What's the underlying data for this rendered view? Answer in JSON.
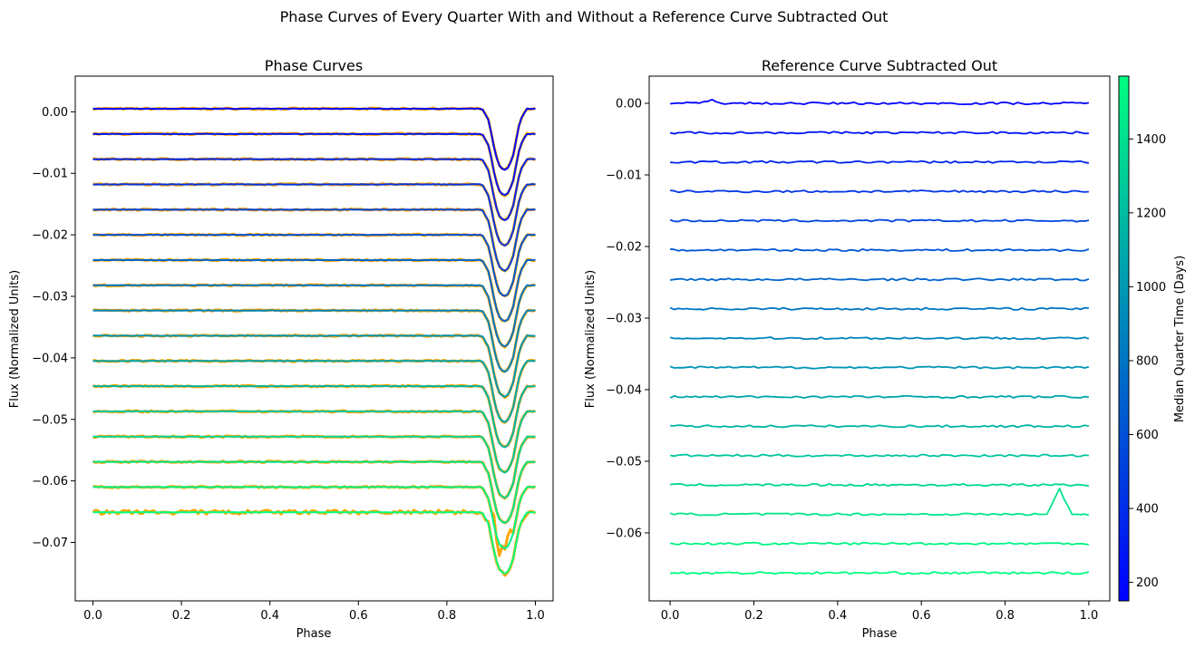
{
  "suptitle": "Phase Curves of Every Quarter With and Without a Reference Curve Subtracted Out",
  "colors": {
    "raw": "#ffa500",
    "cmap_low": "#0000ff",
    "cmap_high": "#00ff80",
    "axes_edge": "#000000"
  },
  "chart_data": [
    {
      "type": "line",
      "title": "Phase Curves",
      "xlabel": "Phase",
      "ylabel": "Flux (Normalized Units)",
      "xlim": [
        -0.04,
        1.04
      ],
      "ylim": [
        -0.0795,
        0.0058
      ],
      "xticks": [
        0.0,
        0.2,
        0.4,
        0.6,
        0.8,
        1.0
      ],
      "xtick_labels": [
        "0.0",
        "0.2",
        "0.4",
        "0.6",
        "0.8",
        "1.0"
      ],
      "yticks": [
        0.0,
        -0.01,
        -0.02,
        -0.03,
        -0.04,
        -0.05,
        -0.06,
        -0.07
      ],
      "ytick_labels": [
        "0.00",
        "−0.01",
        "−0.02",
        "−0.03",
        "−0.04",
        "−0.05",
        "−0.06",
        "−0.07"
      ],
      "raw_color": "orange",
      "offsets": [
        0.0005,
        -0.0036,
        -0.0077,
        -0.0118,
        -0.0159,
        -0.02,
        -0.0241,
        -0.0282,
        -0.0323,
        -0.0364,
        -0.0405,
        -0.0446,
        -0.0487,
        -0.0528,
        -0.0569,
        -0.061,
        -0.0651
      ],
      "median_times_days": [
        170,
        260,
        350,
        440,
        530,
        620,
        710,
        800,
        890,
        980,
        1070,
        1160,
        1250,
        1340,
        1430,
        1510,
        1570
      ],
      "transit_profile": {
        "phase": [
          0.0,
          0.88,
          0.895,
          0.91,
          0.92,
          0.93,
          0.94,
          0.95,
          0.965,
          0.98,
          1.0
        ],
        "delta_flux": [
          0.0,
          0.0,
          -0.002,
          -0.0075,
          -0.0095,
          -0.01,
          -0.0095,
          -0.0075,
          -0.002,
          0.0,
          0.0
        ]
      }
    },
    {
      "type": "line",
      "title": "Reference Curve Subtracted Out",
      "xlabel": "Phase",
      "ylabel": "Flux (Normalized Units)",
      "xlim": [
        -0.05,
        1.05
      ],
      "ylim": [
        -0.0695,
        0.0038
      ],
      "xticks": [
        0.0,
        0.2,
        0.4,
        0.6,
        0.8,
        1.0
      ],
      "xtick_labels": [
        "0.0",
        "0.2",
        "0.4",
        "0.6",
        "0.8",
        "1.0"
      ],
      "yticks": [
        0.0,
        -0.01,
        -0.02,
        -0.03,
        -0.04,
        -0.05,
        -0.06
      ],
      "ytick_labels": [
        "0.00",
        "−0.01",
        "−0.02",
        "−0.03",
        "−0.04",
        "−0.05",
        "−0.06"
      ],
      "offsets": [
        0.0,
        -0.0041,
        -0.0082,
        -0.0123,
        -0.0164,
        -0.0205,
        -0.0246,
        -0.0287,
        -0.0328,
        -0.0369,
        -0.041,
        -0.0451,
        -0.0492,
        -0.0533,
        -0.0574,
        -0.0615,
        -0.0656
      ],
      "median_times_days": [
        170,
        260,
        350,
        440,
        530,
        620,
        710,
        800,
        890,
        980,
        1070,
        1160,
        1250,
        1340,
        1430,
        1510,
        1570
      ],
      "features": [
        {
          "curve": 0,
          "phase": 0.1,
          "delta_flux": 0.0005
        },
        {
          "curve": 14,
          "phase": 0.93,
          "delta_flux": 0.0035
        }
      ],
      "colorbar": {
        "label": "Median Quarter Time (Days)",
        "range": [
          150,
          1570
        ],
        "ticks": [
          200,
          400,
          600,
          800,
          1000,
          1200,
          1400
        ],
        "tick_labels": [
          "200",
          "400",
          "600",
          "800",
          "1000",
          "1200",
          "1400"
        ]
      }
    }
  ]
}
